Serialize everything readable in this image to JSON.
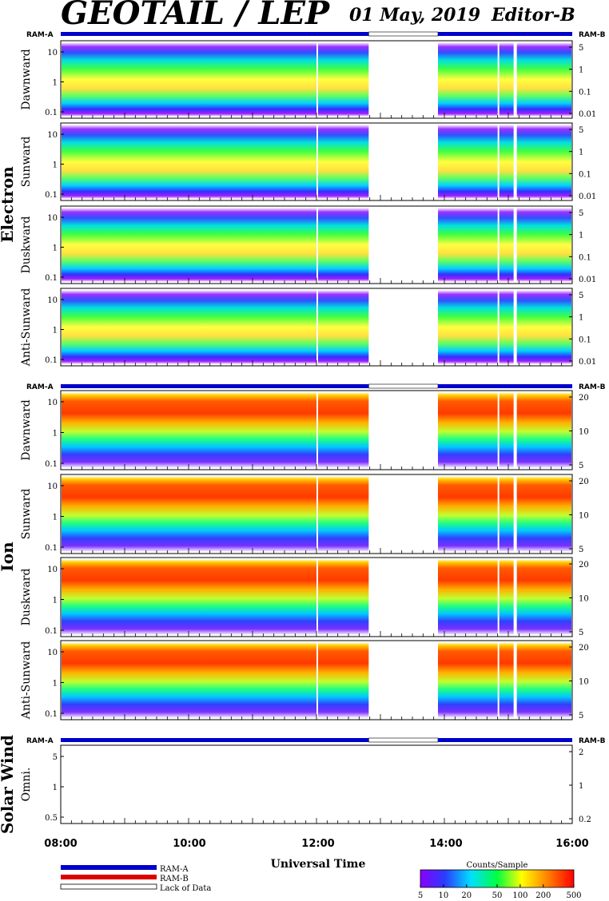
{
  "header": {
    "title": "GEOTAIL / LEP",
    "date": "01 May, 2019",
    "editor": "Editor-B"
  },
  "ram_labels": {
    "left": "RAM-A",
    "right": "RAM-B"
  },
  "groups": [
    {
      "name": "Electron",
      "panels": [
        "Dawnward",
        "Sunward",
        "Duskward",
        "Anti-Sunward"
      ],
      "left_ticks": [
        "10",
        "1",
        "0.1"
      ],
      "right_ticks": [
        "5",
        "1",
        "0.1",
        "0.01"
      ]
    },
    {
      "name": "Ion",
      "panels": [
        "Dawnward",
        "Sunward",
        "Duskward",
        "Anti-Sunward"
      ],
      "left_ticks": [
        "10",
        "1",
        "0.1"
      ],
      "right_ticks": [
        "20",
        "10",
        "5"
      ]
    },
    {
      "name": "Solar Wind",
      "panels": [
        "Omni."
      ],
      "left_ticks": [
        "5",
        "1",
        "0.5"
      ],
      "right_ticks": [
        "2",
        "1",
        "0.2"
      ]
    }
  ],
  "xaxis": {
    "label": "Universal Time",
    "ticks": [
      "08:00",
      "10:00",
      "12:00",
      "14:00",
      "16:00"
    ]
  },
  "legend": {
    "items": [
      {
        "label": "RAM-A",
        "color": "#0000cc"
      },
      {
        "label": "RAM-B",
        "color": "#dd0000"
      },
      {
        "label": "Lack of Data",
        "color": "#ffffff"
      }
    ]
  },
  "colorbar": {
    "title": "Counts/Sample",
    "ticks": [
      "5",
      "10",
      "20",
      "50",
      "100",
      "200",
      "500"
    ]
  },
  "chart_data": {
    "type": "heatmap",
    "title": "GEOTAIL / LEP",
    "xlabel": "Universal Time",
    "x_range": [
      "08:00",
      "16:00"
    ],
    "data_gap": [
      "12:49",
      "13:54"
    ],
    "panels": [
      {
        "group": "Electron",
        "name": "Dawnward",
        "y_scale": "log"
      },
      {
        "group": "Electron",
        "name": "Sunward",
        "y_scale": "log"
      },
      {
        "group": "Electron",
        "name": "Duskward",
        "y_scale": "log"
      },
      {
        "group": "Electron",
        "name": "Anti-Sunward",
        "y_scale": "log"
      },
      {
        "group": "Ion",
        "name": "Dawnward",
        "y_scale": "log"
      },
      {
        "group": "Ion",
        "name": "Sunward",
        "y_scale": "log"
      },
      {
        "group": "Ion",
        "name": "Duskward",
        "y_scale": "log"
      },
      {
        "group": "Ion",
        "name": "Anti-Sunward",
        "y_scale": "log"
      },
      {
        "group": "Solar Wind",
        "name": "Omni.",
        "y_scale": "log"
      }
    ],
    "colorscale": {
      "label": "Counts/Sample",
      "min": 5,
      "max": 500,
      "scale": "log"
    }
  }
}
